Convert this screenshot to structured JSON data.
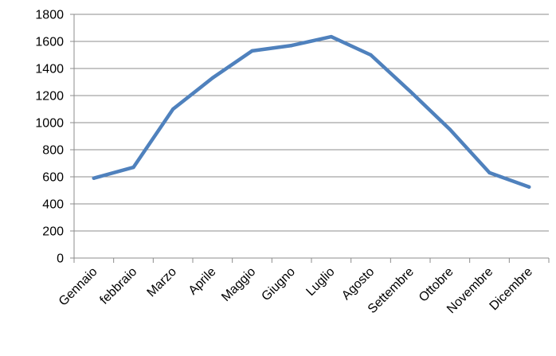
{
  "chart_data": {
    "type": "line",
    "title": "",
    "xlabel": "",
    "ylabel": "",
    "categories": [
      "Gennaio",
      "febbraio",
      "Marzo",
      "Aprile",
      "Maggio",
      "Giugno",
      "Luglio",
      "Agosto",
      "Settembre",
      "Ottobre",
      "Novembre",
      "Dicembre"
    ],
    "y_ticks": [
      "0",
      "200",
      "400",
      "600",
      "800",
      "1000",
      "1200",
      "1400",
      "1600",
      "1800"
    ],
    "ylim": [
      0,
      1800
    ],
    "grid": true,
    "legend": "none",
    "series": [
      {
        "values": [
          590,
          670,
          1100,
          1330,
          1530,
          1570,
          1635,
          1500,
          1230,
          950,
          630,
          525
        ],
        "color": "#4f81bd"
      }
    ]
  }
}
